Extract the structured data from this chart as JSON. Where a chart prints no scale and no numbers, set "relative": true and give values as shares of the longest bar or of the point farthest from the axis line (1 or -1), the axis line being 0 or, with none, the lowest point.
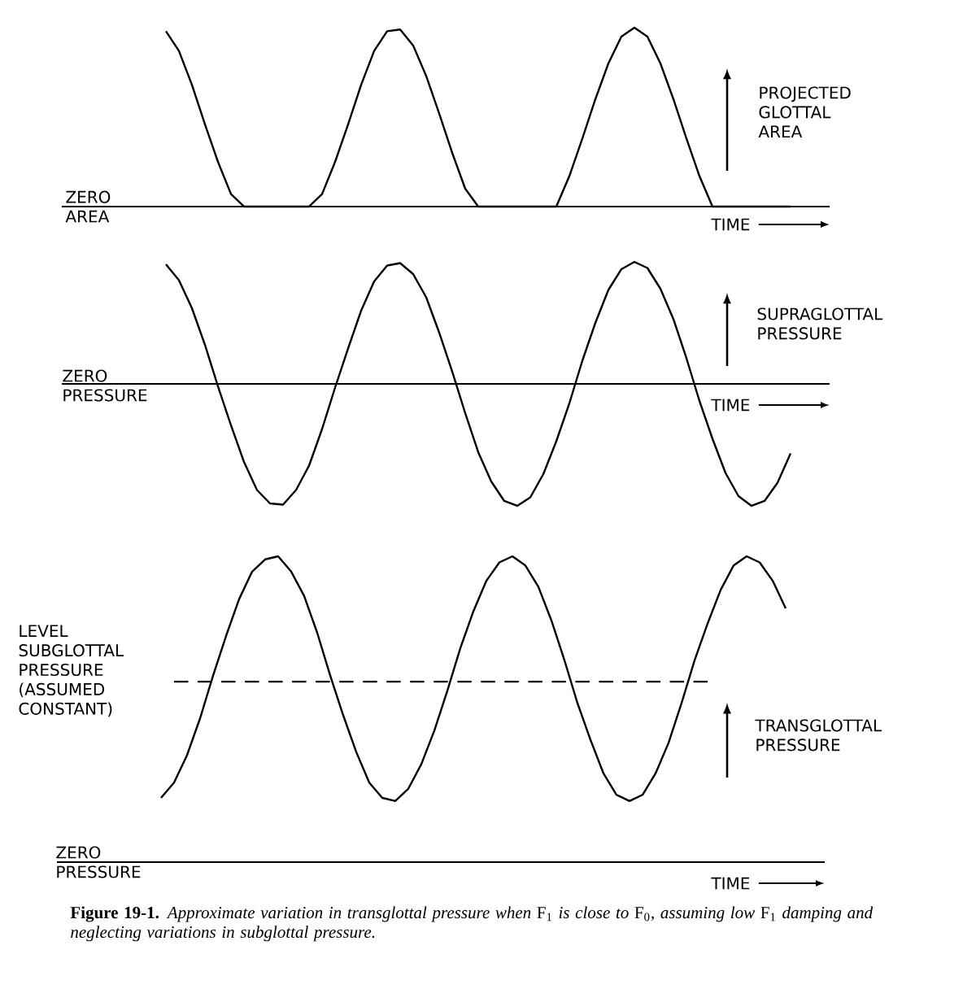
{
  "chart_data": [
    {
      "type": "line",
      "relative": true,
      "xlabel": "TIME",
      "ylabel": "PROJECTED GLOTTAL AREA",
      "categories": [
        null,
        null,
        null,
        null,
        null,
        null,
        null,
        null,
        null,
        null,
        null,
        null,
        null,
        null,
        null,
        null,
        null,
        null,
        null,
        null,
        null,
        null,
        null,
        null,
        null,
        null,
        null,
        null,
        null,
        null,
        null,
        null,
        null,
        null,
        null,
        null,
        null,
        null,
        null,
        null,
        null,
        null,
        null,
        null,
        null,
        null,
        null,
        null,
        null,
        null,
        null,
        null,
        null,
        null,
        null,
        null,
        null,
        null,
        null,
        null
      ],
      "series": [
        {
          "color": "#000000",
          "values": [
            null,
            null,
            null,
            null,
            null,
            null,
            null,
            null,
            0.98,
            0.87,
            0.68,
            0.46,
            0.25,
            0.07,
            0,
            0,
            0,
            0,
            0,
            0,
            0.07,
            0.25,
            0.46,
            0.68,
            0.87,
            0.98,
            0.99,
            0.9,
            0.73,
            0.52,
            0.3,
            0.1,
            0,
            0,
            0,
            0,
            0,
            0,
            0,
            0.17,
            0.38,
            0.6,
            0.8,
            0.95,
            1,
            0.95,
            0.8,
            0.6,
            0.38,
            0.17,
            0,
            0,
            0,
            0,
            0,
            0,
            0,
            null,
            null,
            null
          ]
        }
      ],
      "annotations": [
        "ZERO AREA"
      ]
    },
    {
      "type": "line",
      "relative": true,
      "xlabel": "TIME",
      "ylabel": "SUPRAGLOTTAL PRESSURE",
      "categories": [
        null,
        null,
        null,
        null,
        null,
        null,
        null,
        null,
        null,
        null,
        null,
        null,
        null,
        null,
        null,
        null,
        null,
        null,
        null,
        null,
        null,
        null,
        null,
        null,
        null,
        null,
        null,
        null,
        null,
        null,
        null,
        null,
        null,
        null,
        null,
        null,
        null,
        null,
        null,
        null,
        null,
        null,
        null,
        null,
        null,
        null,
        null,
        null,
        null,
        null,
        null,
        null,
        null,
        null,
        null,
        null,
        null,
        null,
        null,
        null
      ],
      "series": [
        {
          "color": "#000000",
          "values": [
            null,
            null,
            null,
            null,
            null,
            null,
            null,
            null,
            0.98,
            0.85,
            0.62,
            0.32,
            -0.02,
            -0.34,
            -0.64,
            -0.87,
            -0.98,
            -0.99,
            -0.87,
            -0.67,
            -0.37,
            -0.03,
            0.29,
            0.6,
            0.84,
            0.97,
            0.99,
            0.9,
            0.71,
            0.42,
            0.1,
            -0.24,
            -0.56,
            -0.8,
            -0.96,
            -1,
            -0.93,
            -0.74,
            -0.47,
            -0.16,
            0.19,
            0.5,
            0.77,
            0.94,
            1,
            0.95,
            0.78,
            0.53,
            0.21,
            -0.14,
            -0.45,
            -0.73,
            -0.92,
            -1,
            -0.96,
            -0.81,
            -0.57,
            null,
            null,
            null
          ]
        }
      ],
      "annotations": [
        "ZERO PRESSURE"
      ]
    },
    {
      "type": "line",
      "relative": true,
      "xlabel": "TIME",
      "ylabel": "TRANSGLOTTAL PRESSURE",
      "categories": [
        null,
        null,
        null,
        null,
        null,
        null,
        null,
        null,
        null,
        null,
        null,
        null,
        null,
        null,
        null,
        null,
        null,
        null,
        null,
        null,
        null,
        null,
        null,
        null,
        null,
        null,
        null,
        null,
        null,
        null,
        null,
        null,
        null,
        null,
        null,
        null,
        null,
        null,
        null,
        null,
        null,
        null,
        null,
        null,
        null,
        null,
        null,
        null,
        null,
        null,
        null,
        null,
        null,
        null,
        null,
        null,
        null,
        null,
        null,
        null
      ],
      "series": [
        {
          "color": "#000000",
          "values": [
            null,
            null,
            null,
            null,
            null,
            null,
            null,
            null,
            0.21,
            0.26,
            0.35,
            0.47,
            0.61,
            0.74,
            0.86,
            0.95,
            0.99,
            1,
            0.95,
            0.87,
            0.75,
            0.61,
            0.48,
            0.36,
            0.26,
            0.21,
            0.2,
            0.24,
            0.32,
            0.43,
            0.56,
            0.7,
            0.82,
            0.92,
            0.98,
            1,
            0.97,
            0.9,
            0.79,
            0.66,
            0.52,
            0.4,
            0.29,
            0.22,
            0.2,
            0.22,
            0.29,
            0.39,
            0.52,
            0.66,
            0.78,
            0.89,
            0.97,
            1,
            0.98,
            0.92,
            0.83,
            null,
            null,
            null
          ]
        },
        {
          "name": "LEVEL SUBGLOTTAL PRESSURE (ASSUMED CONSTANT)",
          "color": "#000000",
          "line_style": "dashed",
          "values": [
            null,
            null,
            null,
            null,
            null,
            null,
            null,
            null,
            null,
            0.59,
            0.59,
            0.59,
            0.59,
            0.59,
            0.59,
            0.59,
            0.59,
            0.59,
            0.59,
            0.59,
            0.59,
            0.59,
            0.59,
            0.59,
            0.59,
            0.59,
            0.59,
            0.59,
            0.59,
            0.59,
            0.59,
            0.59,
            0.59,
            0.59,
            0.59,
            0.59,
            0.59,
            0.59,
            0.59,
            0.59,
            0.59,
            0.59,
            0.59,
            0.59,
            0.59,
            0.59,
            0.59,
            0.59,
            0.59,
            0.59,
            0.59,
            null,
            null,
            null,
            null,
            null,
            null,
            null,
            null,
            null
          ]
        }
      ],
      "annotations": [
        "ZERO PRESSURE",
        "**Figure 19-1.** *Approximate variation in transglottal pressure when* F$_{1}$ *is close to* F$_{0}$*, assuming low* F$_{1}$ *damping and neglecting variations in subglottal pressure.*"
      ]
    }
  ]
}
